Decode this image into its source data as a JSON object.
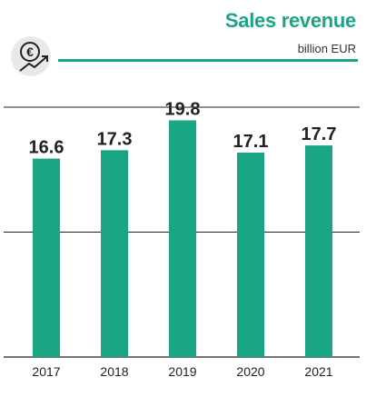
{
  "header": {
    "title": "Sales revenue",
    "unit": "billion EUR",
    "icon": "euro-growth-icon"
  },
  "colors": {
    "accent": "#1aa585",
    "bar": "#1aa585",
    "gridline": "#222222",
    "icon_bg": "#e9e9e9",
    "text": "#222222"
  },
  "chart_data": {
    "type": "bar",
    "title": "Sales revenue",
    "ylabel": "billion EUR",
    "xlabel": "",
    "categories": [
      "2017",
      "2018",
      "2019",
      "2020",
      "2021"
    ],
    "values": [
      16.6,
      17.3,
      19.8,
      17.1,
      17.7
    ],
    "data_labels": [
      "16.6",
      "17.3",
      "19.8",
      "17.1",
      "17.7"
    ],
    "ylim": [
      0,
      20.9
    ],
    "gridlines": [
      0,
      10.45,
      20.9
    ],
    "grid": true,
    "legend": "none"
  }
}
